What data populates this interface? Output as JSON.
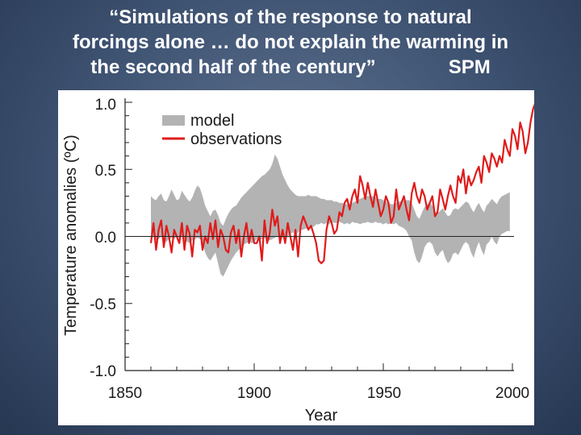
{
  "slide": {
    "title_line1": "“Simulations of the response to natural",
    "title_line2": "forcings alone … do not explain the warming in",
    "title_line3": "the second half of the century”",
    "title_tag": "SPM"
  },
  "chart_data": {
    "type": "line",
    "title": "",
    "xlabel": "Year",
    "ylabel": "Temperature anomalies (ºC)",
    "xlim": [
      1850,
      2000
    ],
    "ylim": [
      -1.0,
      1.0
    ],
    "x_ticks": [
      "1850",
      "1900",
      "1950",
      "2000"
    ],
    "y_ticks": [
      "1.0",
      "0.5",
      "0.0",
      "-0.5",
      "-1.0"
    ],
    "legend_placement": "top-left",
    "grid": false,
    "x_start": 1860,
    "x_step": 1,
    "series": [
      {
        "name": "model",
        "kind": "band",
        "color": "#b3b3b3",
        "lower": [
          0.02,
          0.0,
          -0.03,
          -0.02,
          0.0,
          -0.05,
          -0.04,
          -0.02,
          -0.01,
          -0.02,
          0.0,
          -0.01,
          0.0,
          -0.02,
          -0.04,
          -0.05,
          -0.03,
          -0.02,
          -0.01,
          -0.02,
          -0.05,
          -0.12,
          -0.16,
          -0.18,
          -0.15,
          -0.12,
          -0.2,
          -0.28,
          -0.3,
          -0.26,
          -0.22,
          -0.18,
          -0.15,
          -0.12,
          -0.1,
          -0.08,
          -0.06,
          -0.05,
          -0.04,
          -0.05,
          -0.04,
          -0.02,
          -0.03,
          -0.02,
          -0.01,
          -0.02,
          -0.03,
          -0.02,
          -0.01,
          0.0,
          0.0,
          -0.01,
          0.01,
          0.0,
          0.02,
          0.03,
          0.02,
          0.03,
          0.05,
          0.05,
          0.06,
          0.05,
          0.07,
          0.07,
          0.09,
          0.09,
          0.1,
          0.09,
          0.1,
          0.09,
          0.11,
          0.1,
          0.1,
          0.11,
          0.1,
          0.09,
          0.1,
          0.09,
          0.11,
          0.1,
          0.1,
          0.09,
          0.1,
          0.1,
          0.11,
          0.1,
          0.1,
          0.11,
          0.1,
          0.1,
          0.09,
          0.1,
          0.09,
          0.1,
          0.09,
          0.1,
          0.08,
          0.07,
          0.06,
          0.04,
          0.0,
          -0.03,
          -0.12,
          -0.18,
          -0.2,
          -0.15,
          -0.08,
          -0.05,
          -0.04,
          -0.06,
          -0.12,
          -0.15,
          -0.12,
          -0.1,
          -0.16,
          -0.2,
          -0.18,
          -0.13,
          -0.12,
          -0.14,
          -0.1,
          -0.06,
          -0.04,
          -0.06,
          -0.12,
          -0.16,
          -0.09,
          -0.04,
          -0.1,
          -0.14,
          -0.06,
          -0.04,
          0.0,
          -0.04,
          -0.06,
          0.0,
          0.02,
          0.03,
          0.04,
          0.04
        ],
        "upper": [
          0.3,
          0.28,
          0.27,
          0.3,
          0.32,
          0.27,
          0.26,
          0.3,
          0.35,
          0.31,
          0.27,
          0.28,
          0.34,
          0.31,
          0.28,
          0.26,
          0.29,
          0.34,
          0.38,
          0.36,
          0.3,
          0.23,
          0.19,
          0.15,
          0.19,
          0.2,
          0.16,
          0.1,
          0.08,
          0.13,
          0.17,
          0.2,
          0.22,
          0.23,
          0.26,
          0.29,
          0.31,
          0.33,
          0.35,
          0.37,
          0.39,
          0.41,
          0.43,
          0.45,
          0.46,
          0.48,
          0.5,
          0.54,
          0.61,
          0.58,
          0.52,
          0.46,
          0.42,
          0.38,
          0.35,
          0.33,
          0.31,
          0.3,
          0.3,
          0.3,
          0.3,
          0.31,
          0.3,
          0.3,
          0.3,
          0.29,
          0.28,
          0.28,
          0.27,
          0.27,
          0.27,
          0.26,
          0.26,
          0.25,
          0.25,
          0.24,
          0.24,
          0.24,
          0.25,
          0.26,
          0.27,
          0.28,
          0.29,
          0.3,
          0.3,
          0.3,
          0.3,
          0.29,
          0.28,
          0.28,
          0.27,
          0.26,
          0.25,
          0.24,
          0.24,
          0.25,
          0.26,
          0.26,
          0.27,
          0.27,
          0.27,
          0.25,
          0.2,
          0.15,
          0.13,
          0.18,
          0.22,
          0.24,
          0.25,
          0.23,
          0.19,
          0.17,
          0.19,
          0.21,
          0.18,
          0.15,
          0.16,
          0.2,
          0.21,
          0.2,
          0.22,
          0.24,
          0.26,
          0.25,
          0.21,
          0.18,
          0.22,
          0.25,
          0.21,
          0.18,
          0.23,
          0.25,
          0.28,
          0.26,
          0.24,
          0.28,
          0.3,
          0.31,
          0.32,
          0.33
        ]
      },
      {
        "name": "observations",
        "kind": "line",
        "color": "#e01b1b",
        "values": [
          -0.05,
          0.1,
          -0.1,
          0.05,
          0.12,
          -0.08,
          0.08,
          0.0,
          -0.12,
          0.05,
          0.0,
          -0.05,
          0.1,
          -0.1,
          0.08,
          0.02,
          -0.15,
          0.05,
          0.03,
          0.08,
          -0.1,
          0.0,
          -0.05,
          0.1,
          -0.02,
          0.12,
          -0.08,
          0.05,
          0.0,
          -0.1,
          -0.12,
          0.03,
          0.08,
          -0.05,
          0.05,
          -0.15,
          0.0,
          0.1,
          -0.05,
          0.05,
          -0.05,
          -0.05,
          0.0,
          -0.18,
          0.12,
          -0.05,
          0.02,
          0.2,
          0.08,
          0.15,
          -0.05,
          0.05,
          -0.05,
          0.1,
          0.0,
          -0.1,
          0.05,
          -0.15,
          0.08,
          0.15,
          0.1,
          0.05,
          0.08,
          0.02,
          -0.05,
          -0.18,
          -0.2,
          -0.18,
          0.05,
          0.15,
          0.1,
          0.02,
          0.05,
          0.18,
          0.15,
          0.25,
          0.28,
          0.2,
          0.3,
          0.35,
          0.25,
          0.45,
          0.38,
          0.28,
          0.4,
          0.3,
          0.22,
          0.35,
          0.25,
          0.15,
          0.2,
          0.3,
          0.25,
          0.1,
          0.15,
          0.35,
          0.2,
          0.25,
          0.3,
          0.2,
          0.12,
          0.32,
          0.4,
          0.3,
          0.25,
          0.35,
          0.3,
          0.2,
          0.25,
          0.3,
          0.15,
          0.18,
          0.35,
          0.28,
          0.2,
          0.3,
          0.38,
          0.3,
          0.25,
          0.45,
          0.4,
          0.5,
          0.32,
          0.45,
          0.38,
          0.42,
          0.48,
          0.52,
          0.4,
          0.6,
          0.55,
          0.48,
          0.62,
          0.58,
          0.52,
          0.6,
          0.55,
          0.72,
          0.65,
          0.6,
          0.8,
          0.75,
          0.65,
          0.85,
          0.78,
          0.62,
          0.7,
          0.85,
          0.95,
          1.0,
          0.9,
          0.75,
          0.72,
          0.82,
          0.9,
          0.95,
          0.88,
          0.8,
          0.92,
          0.85,
          0.8,
          0.7,
          0.62,
          0.68,
          0.58,
          0.6,
          0.75,
          0.8,
          0.65,
          0.9,
          0.85,
          0.9,
          1.05,
          0.95,
          0.72,
          0.98,
          0.82
        ]
      }
    ]
  }
}
